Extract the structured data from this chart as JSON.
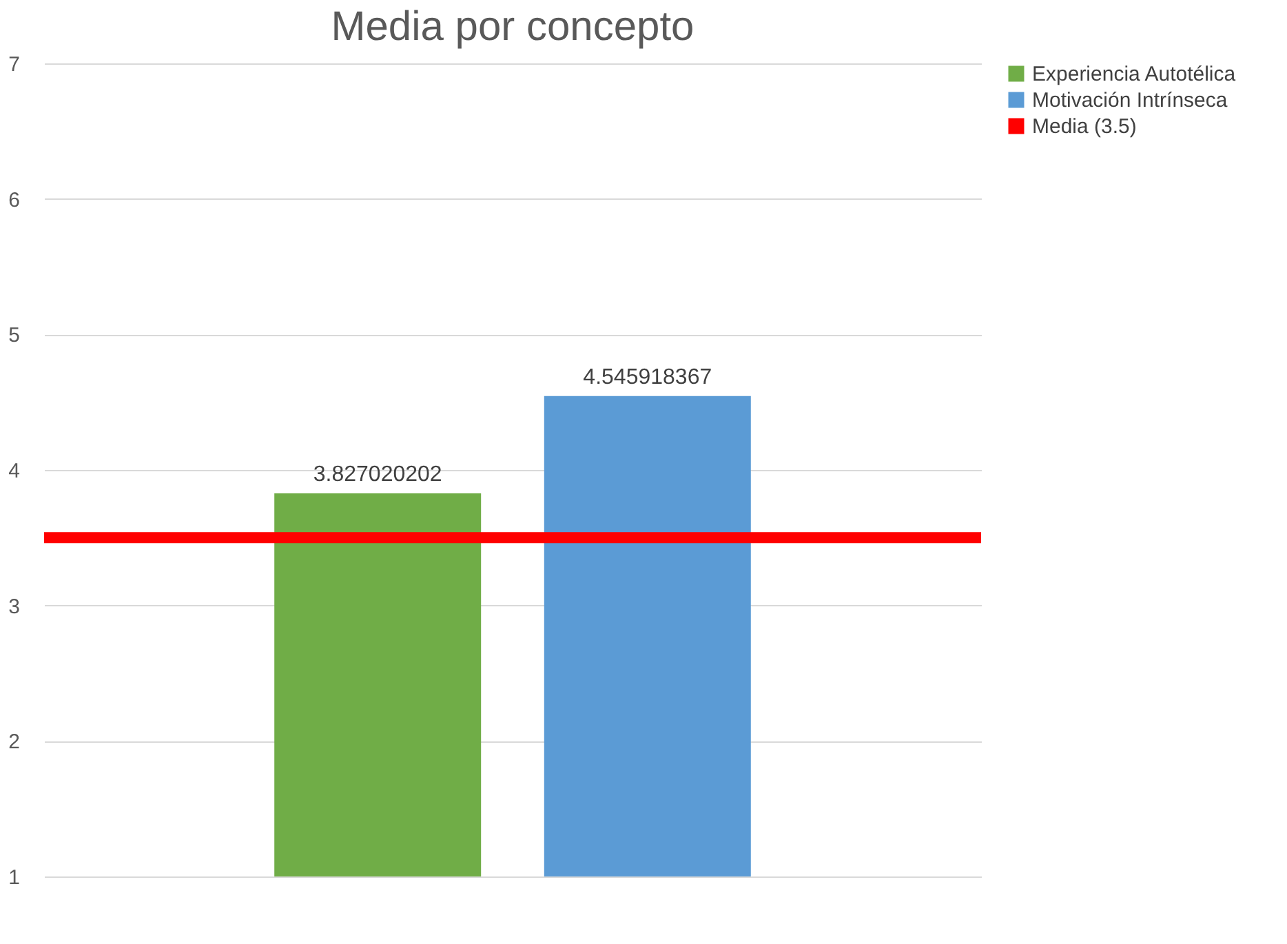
{
  "chart_data": {
    "type": "bar",
    "title": "Media por concepto",
    "categories": [
      null
    ],
    "series": [
      {
        "name": "Experiencia Autotélica",
        "color": "#70ad47",
        "values": [
          3.827020202
        ]
      },
      {
        "name": "Motivación Intrínseca",
        "color": "#5b9bd5",
        "values": [
          4.545918367
        ]
      }
    ],
    "ref_lines": [
      {
        "axis": "y",
        "value": 3.5,
        "label": "Media (3.5)",
        "color": "#ff0000"
      }
    ],
    "ylim": [
      1,
      7
    ],
    "yticks": [
      1,
      2,
      3,
      4,
      5,
      6,
      7
    ],
    "grid": "y",
    "legend": "right",
    "data_labels": true
  }
}
